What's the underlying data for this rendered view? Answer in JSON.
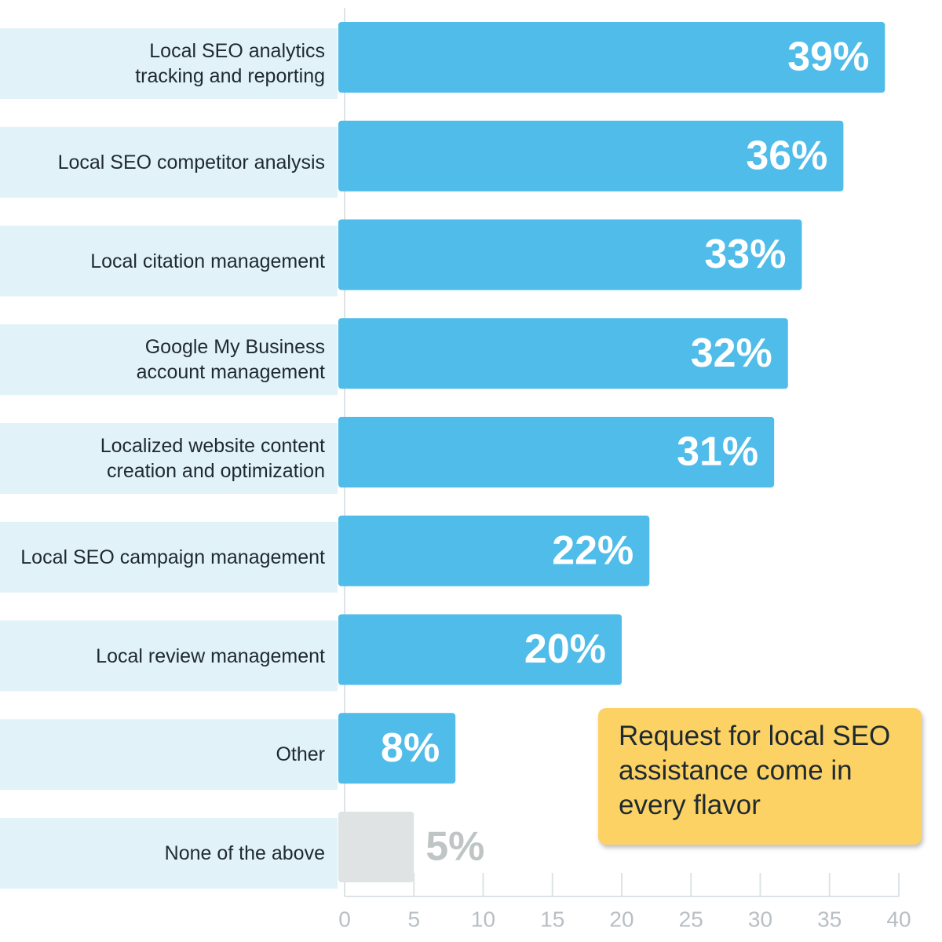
{
  "chart_data": {
    "type": "hbar",
    "categories": [
      "Local SEO analytics\ntracking and reporting",
      "Local SEO competitor analysis",
      "Local citation management",
      "Google My Business\naccount management",
      "Localized website content\ncreation and optimization",
      "Local SEO campaign management",
      "Local review management",
      "Other",
      "None of the above"
    ],
    "values": [
      39,
      36,
      33,
      32,
      31,
      22,
      20,
      8,
      5
    ],
    "value_labels": [
      "39%",
      "36%",
      "33%",
      "32%",
      "31%",
      "22%",
      "20%",
      "8%",
      "5%"
    ],
    "colors": [
      "#4fbce9",
      "#4fbce9",
      "#4fbce9",
      "#4fbce9",
      "#4fbce9",
      "#4fbce9",
      "#4fbce9",
      "#4fbce9",
      "#dfe3e3"
    ],
    "xlim": [
      0,
      40
    ],
    "xticks": [
      0,
      5,
      10,
      15,
      20,
      25,
      30,
      35,
      40
    ],
    "annotation": "Request for local SEO\nassistance come in\nevery flavor"
  }
}
